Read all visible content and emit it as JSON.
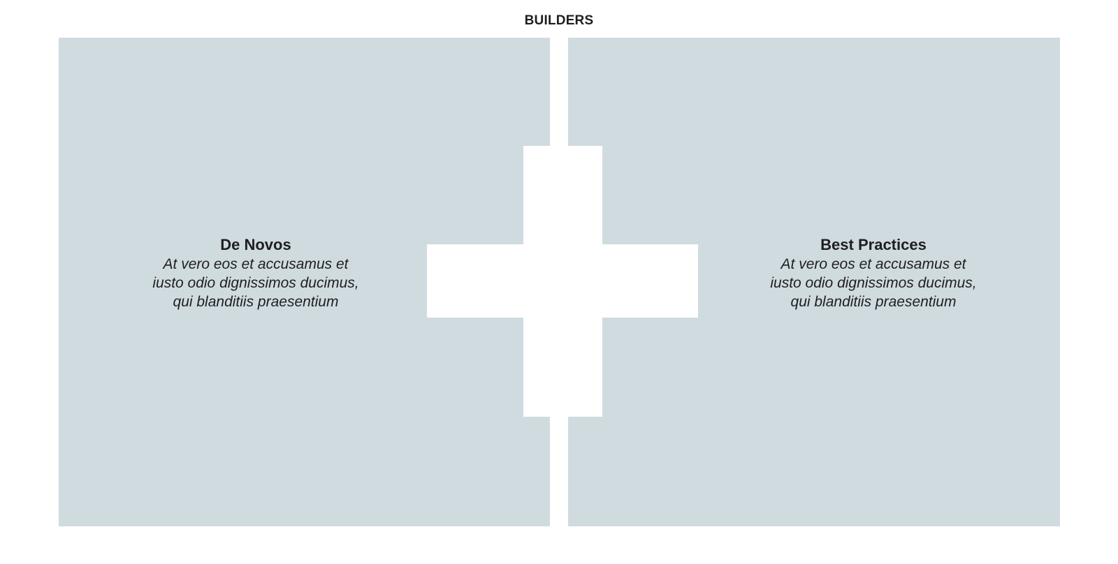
{
  "header": {
    "title": "BUILDERS"
  },
  "panels": [
    {
      "heading": "De Novos",
      "body": "At vero eos et accusamus et\niusto odio dignissimos ducimus,\nqui blanditiis praesentium"
    },
    {
      "heading": "Best Practices",
      "body": "At vero eos et accusamus et\niusto odio dignissimos ducimus,\nqui blanditiis praesentium"
    }
  ],
  "colors": {
    "panel_background": "#d0dbe0",
    "page_background": "#ffffff",
    "text": "#1e1e22",
    "plus_sign": "#ffffff"
  },
  "icons": {
    "center": "plus-icon"
  }
}
